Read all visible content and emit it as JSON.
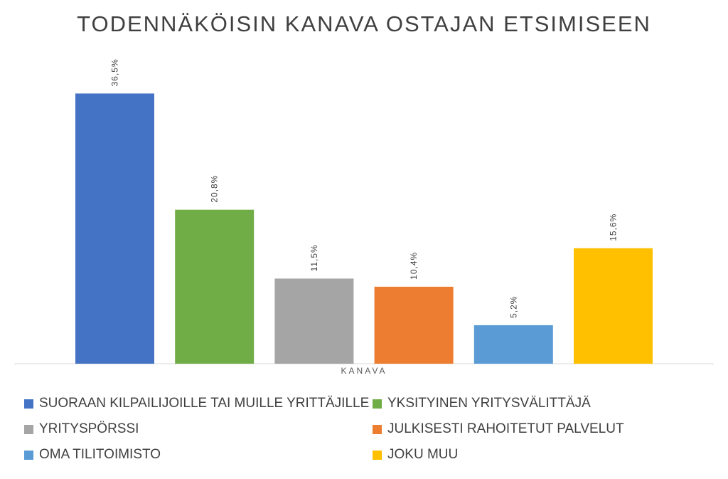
{
  "chart_data": {
    "type": "bar",
    "title": "TODENNÄKÖISIN KANAVA OSTAJAN ETSIMISEEN",
    "xlabel": "KANAVA",
    "ylabel": "",
    "ylim": [
      0,
      40
    ],
    "grid": false,
    "legend_position": "bottom",
    "series": [
      {
        "name": "SUORAAN KILPAILIJOILLE TAI MUILLE YRITTÄJILLE",
        "value": 36.5,
        "label": "36,5%",
        "color": "#4472C4"
      },
      {
        "name": "YKSITYINEN YRITYSVÄLITTÄJÄ",
        "value": 20.8,
        "label": "20,8%",
        "color": "#70AD47"
      },
      {
        "name": "YRITYSPÖRSSI",
        "value": 11.5,
        "label": "11,5%",
        "color": "#A5A5A5"
      },
      {
        "name": "JULKISESTI RAHOITETUT PALVELUT",
        "value": 10.4,
        "label": "10,4%",
        "color": "#ED7D31"
      },
      {
        "name": "OMA TILITOIMISTO",
        "value": 5.2,
        "label": "5,2%",
        "color": "#5B9BD5"
      },
      {
        "name": "JOKU MUU",
        "value": 15.6,
        "label": "15,6%",
        "color": "#FFC000"
      }
    ],
    "legend_order": [
      0,
      1,
      2,
      3,
      4,
      5
    ]
  }
}
